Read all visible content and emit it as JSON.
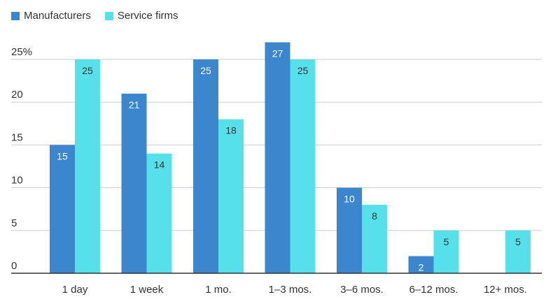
{
  "colors": {
    "manufacturers": "#3b86cc",
    "service_firms": "#56e0ea",
    "grid": "#cccccc",
    "axis": "#333333"
  },
  "chart_data": {
    "type": "bar",
    "title": "",
    "xlabel": "",
    "ylabel": "",
    "categories": [
      "1 day",
      "1 week",
      "1 mo.",
      "1–3 mos.",
      "3–6 mos.",
      "6–12 mos.",
      "12+ mos."
    ],
    "series": [
      {
        "name": "Manufacturers",
        "values": [
          15,
          21,
          25,
          27,
          10,
          2,
          null
        ]
      },
      {
        "name": "Service firms",
        "values": [
          25,
          14,
          18,
          25,
          8,
          5,
          5
        ]
      }
    ],
    "ylim": [
      0,
      25
    ],
    "yticks": [
      0,
      5,
      10,
      15,
      20,
      25
    ],
    "ytick_labels": [
      "0",
      "5",
      "10",
      "15",
      "20",
      "25%"
    ],
    "grid": true,
    "legend_position": "top-left"
  }
}
